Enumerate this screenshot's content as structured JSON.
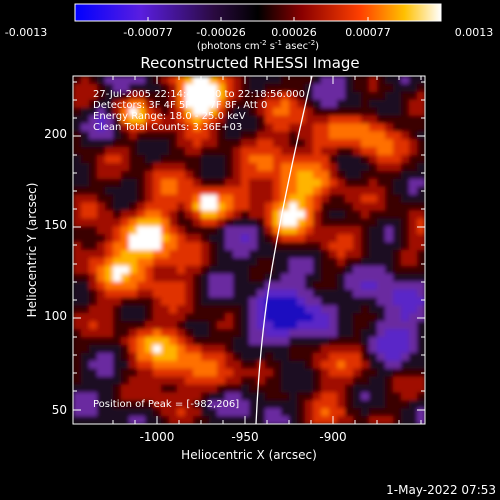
{
  "colorbar": {
    "tick_labels": [
      "-0.0013",
      "-0.00077",
      "-0.00026",
      "0.00026",
      "0.00077",
      "0.0013"
    ],
    "units_prefix": "(photons cm",
    "units_exp1": "-2",
    "units_mid1": " s",
    "units_exp2": "-1",
    "units_mid2": " asec",
    "units_exp3": "-2",
    "units_suffix": ")",
    "colors": [
      "#1a1aff",
      "#7a20b0",
      "#000000",
      "#b01a1a",
      "#ff4a00",
      "#ffc300",
      "#ffffff"
    ]
  },
  "plot": {
    "title": "Reconstructed RHESSI Image",
    "info_lines": [
      "27-Jul-2005 22:14:48.000 to 22:18:56.000",
      "Detectors: 3F 4F 5F 6F 7F 8F, Att 0",
      "Energy Range: 18.0 - 25.0 keV",
      "Clean     Total Counts: 3.36E+03"
    ],
    "peak_text": "Position of Peak = [-982,206]",
    "xlabel": "Heliocentric X (arcsec)",
    "ylabel": "Heliocentric Y (arcsec)",
    "x_ticks": [
      "-1000",
      "-950",
      "-900"
    ],
    "y_ticks": [
      "50",
      "100",
      "150",
      "200"
    ],
    "xlim": [
      -1045,
      -855
    ],
    "ylim": [
      40,
      238
    ]
  },
  "timestamp": "1-May-2022 07:53"
}
